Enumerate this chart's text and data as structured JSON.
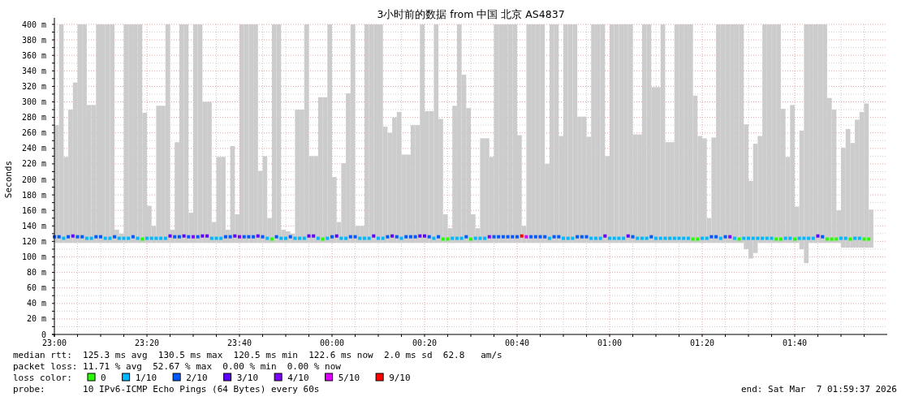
{
  "chart_data": {
    "type": "bar",
    "title": "3小时前的数据 from 中国 北京 AS4837",
    "ylabel": "Seconds",
    "legend_title": "loss color:",
    "legend": "bottom",
    "grid": true,
    "marker": "square",
    "xlim": [
      "2026-03-06T23:00",
      "2026-03-07T02:00"
    ],
    "xticks": [
      {
        "value": "2026-03-06T23:00",
        "label": "23:00"
      },
      {
        "value": "2026-03-06T23:05",
        "label": null
      },
      {
        "value": "2026-03-06T23:10",
        "label": null
      },
      {
        "value": "2026-03-06T23:15",
        "label": null
      },
      {
        "value": "2026-03-06T23:20",
        "label": "23:20"
      },
      {
        "value": "2026-03-06T23:25",
        "label": null
      },
      {
        "value": "2026-03-06T23:30",
        "label": null
      },
      {
        "value": "2026-03-06T23:35",
        "label": null
      },
      {
        "value": "2026-03-06T23:40",
        "label": "23:40"
      },
      {
        "value": "2026-03-06T23:45",
        "label": null
      },
      {
        "value": "2026-03-06T23:50",
        "label": null
      },
      {
        "value": "2026-03-06T23:55",
        "label": null
      },
      {
        "value": "2026-03-07T00:00",
        "label": "00:00"
      },
      {
        "value": "2026-03-07T00:05",
        "label": null
      },
      {
        "value": "2026-03-07T00:10",
        "label": null
      },
      {
        "value": "2026-03-07T00:15",
        "label": null
      },
      {
        "value": "2026-03-07T00:20",
        "label": "00:20"
      },
      {
        "value": "2026-03-07T00:25",
        "label": null
      },
      {
        "value": "2026-03-07T00:30",
        "label": null
      },
      {
        "value": "2026-03-07T00:35",
        "label": null
      },
      {
        "value": "2026-03-07T00:40",
        "label": "00:40"
      },
      {
        "value": "2026-03-07T00:45",
        "label": null
      },
      {
        "value": "2026-03-07T00:50",
        "label": null
      },
      {
        "value": "2026-03-07T00:55",
        "label": null
      },
      {
        "value": "2026-03-07T01:00",
        "label": "01:00"
      },
      {
        "value": "2026-03-07T01:05",
        "label": null
      },
      {
        "value": "2026-03-07T01:10",
        "label": null
      },
      {
        "value": "2026-03-07T01:15",
        "label": null
      },
      {
        "value": "2026-03-07T01:20",
        "label": "01:20"
      },
      {
        "value": "2026-03-07T01:25",
        "label": null
      },
      {
        "value": "2026-03-07T01:30",
        "label": null
      },
      {
        "value": "2026-03-07T01:35",
        "label": null
      },
      {
        "value": "2026-03-07T01:40",
        "label": "01:40"
      },
      {
        "value": "2026-03-07T01:45",
        "label": null
      },
      {
        "value": "2026-03-07T01:50",
        "label": null
      },
      {
        "value": "2026-03-07T01:55",
        "label": null
      }
    ],
    "ylim": [
      0,
      400
    ],
    "yticks": [
      {
        "value": 0,
        "label": "0"
      },
      {
        "value": 10,
        "label": null
      },
      {
        "value": 20,
        "label": "20 m"
      },
      {
        "value": 30,
        "label": null
      },
      {
        "value": 40,
        "label": "40 m"
      },
      {
        "value": 50,
        "label": null
      },
      {
        "value": 60,
        "label": "60 m"
      },
      {
        "value": 70,
        "label": null
      },
      {
        "value": 80,
        "label": "80 m"
      },
      {
        "value": 90,
        "label": null
      },
      {
        "value": 100,
        "label": "100 m"
      },
      {
        "value": 110,
        "label": null
      },
      {
        "value": 120,
        "label": "120 m"
      },
      {
        "value": 130,
        "label": null
      },
      {
        "value": 140,
        "label": "140 m"
      },
      {
        "value": 150,
        "label": null
      },
      {
        "value": 160,
        "label": "160 m"
      },
      {
        "value": 170,
        "label": null
      },
      {
        "value": 180,
        "label": "180 m"
      },
      {
        "value": 190,
        "label": null
      },
      {
        "value": 200,
        "label": "200 m"
      },
      {
        "value": 210,
        "label": null
      },
      {
        "value": 220,
        "label": "220 m"
      },
      {
        "value": 230,
        "label": null
      },
      {
        "value": 240,
        "label": "240 m"
      },
      {
        "value": 250,
        "label": null
      },
      {
        "value": 260,
        "label": "260 m"
      },
      {
        "value": 270,
        "label": null
      },
      {
        "value": 280,
        "label": "280 m"
      },
      {
        "value": 290,
        "label": null
      },
      {
        "value": 300,
        "label": "300 m"
      },
      {
        "value": 310,
        "label": null
      },
      {
        "value": 320,
        "label": "320 m"
      },
      {
        "value": 330,
        "label": null
      },
      {
        "value": 340,
        "label": "340 m"
      },
      {
        "value": 350,
        "label": null
      },
      {
        "value": 360,
        "label": "360 m"
      },
      {
        "value": 370,
        "label": null
      },
      {
        "value": 380,
        "label": "380 m"
      },
      {
        "value": 390,
        "label": null
      },
      {
        "value": 400,
        "label": "400 m"
      }
    ],
    "annotations": [
      "median rtt:  125.3 ms avg  130.5 ms max  120.5 ms min  122.6 ms now  2.0 ms sd  62.8   am/s",
      "packet loss: 11.71 % avg  52.67 % max  0.00 % min  0.00 % now",
      "probe:       10 IPv6-ICMP Echo Pings (64 Bytes) every 60s",
      "end: Sat Mar  7 01:59:37 2026"
    ],
    "series": [
      {
        "type": "bar",
        "color": "#cccccc",
        "x": [
          "2026-03-06T23:00",
          "2026-03-06T23:01",
          "2026-03-06T23:02",
          "2026-03-06T23:03",
          "2026-03-06T23:04",
          "2026-03-06T23:05",
          "2026-03-06T23:06",
          "2026-03-06T23:07",
          "2026-03-06T23:08",
          "2026-03-06T23:09",
          "2026-03-06T23:10",
          "2026-03-06T23:11",
          "2026-03-06T23:12",
          "2026-03-06T23:13",
          "2026-03-06T23:14",
          "2026-03-06T23:15",
          "2026-03-06T23:16",
          "2026-03-06T23:17",
          "2026-03-06T23:18",
          "2026-03-06T23:19",
          "2026-03-06T23:20",
          "2026-03-06T23:21",
          "2026-03-06T23:22",
          "2026-03-06T23:23",
          "2026-03-06T23:24",
          "2026-03-06T23:25",
          "2026-03-06T23:26",
          "2026-03-06T23:27",
          "2026-03-06T23:28",
          "2026-03-06T23:29",
          "2026-03-06T23:30",
          "2026-03-06T23:31",
          "2026-03-06T23:32",
          "2026-03-06T23:33",
          "2026-03-06T23:34",
          "2026-03-06T23:35",
          "2026-03-06T23:36",
          "2026-03-06T23:37",
          "2026-03-06T23:38",
          "2026-03-06T23:39",
          "2026-03-06T23:40",
          "2026-03-06T23:41",
          "2026-03-06T23:42",
          "2026-03-06T23:43",
          "2026-03-06T23:44",
          "2026-03-06T23:45",
          "2026-03-06T23:46",
          "2026-03-06T23:47",
          "2026-03-06T23:48",
          "2026-03-06T23:49",
          "2026-03-06T23:50",
          "2026-03-06T23:51",
          "2026-03-06T23:52",
          "2026-03-06T23:53",
          "2026-03-06T23:54",
          "2026-03-06T23:55",
          "2026-03-06T23:56",
          "2026-03-06T23:57",
          "2026-03-06T23:58",
          "2026-03-06T23:59",
          "2026-03-07T00:00",
          "2026-03-07T00:01",
          "2026-03-07T00:02",
          "2026-03-07T00:03",
          "2026-03-07T00:04",
          "2026-03-07T00:05",
          "2026-03-07T00:06",
          "2026-03-07T00:07",
          "2026-03-07T00:08",
          "2026-03-07T00:09",
          "2026-03-07T00:10",
          "2026-03-07T00:11",
          "2026-03-07T00:12",
          "2026-03-07T00:13",
          "2026-03-07T00:14",
          "2026-03-07T00:15",
          "2026-03-07T00:16",
          "2026-03-07T00:17",
          "2026-03-07T00:18",
          "2026-03-07T00:19",
          "2026-03-07T00:20",
          "2026-03-07T00:21",
          "2026-03-07T00:22",
          "2026-03-07T00:23",
          "2026-03-07T00:24",
          "2026-03-07T00:25",
          "2026-03-07T00:26",
          "2026-03-07T00:27",
          "2026-03-07T00:28",
          "2026-03-07T00:29",
          "2026-03-07T00:30",
          "2026-03-07T00:31",
          "2026-03-07T00:32",
          "2026-03-07T00:33",
          "2026-03-07T00:34",
          "2026-03-07T00:35",
          "2026-03-07T00:36",
          "2026-03-07T00:37",
          "2026-03-07T00:38",
          "2026-03-07T00:39",
          "2026-03-07T00:40",
          "2026-03-07T00:41",
          "2026-03-07T00:42",
          "2026-03-07T00:43",
          "2026-03-07T00:44",
          "2026-03-07T00:45",
          "2026-03-07T00:46",
          "2026-03-07T00:47",
          "2026-03-07T00:48",
          "2026-03-07T00:49",
          "2026-03-07T00:50",
          "2026-03-07T00:51",
          "2026-03-07T00:52",
          "2026-03-07T00:53",
          "2026-03-07T00:54",
          "2026-03-07T00:55",
          "2026-03-07T00:56",
          "2026-03-07T00:57",
          "2026-03-07T00:58",
          "2026-03-07T00:59",
          "2026-03-07T01:00",
          "2026-03-07T01:01",
          "2026-03-07T01:02",
          "2026-03-07T01:03",
          "2026-03-07T01:04",
          "2026-03-07T01:05",
          "2026-03-07T01:06",
          "2026-03-07T01:07",
          "2026-03-07T01:08",
          "2026-03-07T01:09",
          "2026-03-07T01:10",
          "2026-03-07T01:11",
          "2026-03-07T01:12",
          "2026-03-07T01:13",
          "2026-03-07T01:14",
          "2026-03-07T01:15",
          "2026-03-07T01:16",
          "2026-03-07T01:17",
          "2026-03-07T01:18",
          "2026-03-07T01:19",
          "2026-03-07T01:20",
          "2026-03-07T01:21",
          "2026-03-07T01:22",
          "2026-03-07T01:23",
          "2026-03-07T01:24",
          "2026-03-07T01:25",
          "2026-03-07T01:26",
          "2026-03-07T01:27",
          "2026-03-07T01:28",
          "2026-03-07T01:29",
          "2026-03-07T01:30",
          "2026-03-07T01:31",
          "2026-03-07T01:32",
          "2026-03-07T01:33",
          "2026-03-07T01:34",
          "2026-03-07T01:35",
          "2026-03-07T01:36",
          "2026-03-07T01:37",
          "2026-03-07T01:38",
          "2026-03-07T01:39",
          "2026-03-07T01:40",
          "2026-03-07T01:41",
          "2026-03-07T01:42",
          "2026-03-07T01:43",
          "2026-03-07T01:44",
          "2026-03-07T01:45",
          "2026-03-07T01:46",
          "2026-03-07T01:47",
          "2026-03-07T01:48",
          "2026-03-07T01:49",
          "2026-03-07T01:50",
          "2026-03-07T01:51",
          "2026-03-07T01:52",
          "2026-03-07T01:53",
          "2026-03-07T01:54",
          "2026-03-07T01:55",
          "2026-03-07T01:56"
        ],
        "base": [
          118,
          118,
          118,
          118,
          118,
          118,
          118,
          118,
          118,
          118,
          118,
          118,
          118,
          118,
          118,
          118,
          118,
          118,
          118,
          118,
          118,
          118,
          118,
          118,
          118,
          118,
          118,
          118,
          118,
          118,
          118,
          118,
          118,
          118,
          118,
          118,
          118,
          118,
          118,
          118,
          118,
          118,
          118,
          118,
          118,
          118,
          118,
          118,
          118,
          118,
          118,
          118,
          118,
          118,
          118,
          118,
          118,
          118,
          118,
          118,
          118,
          118,
          118,
          118,
          118,
          118,
          118,
          118,
          118,
          118,
          118,
          118,
          118,
          118,
          118,
          118,
          118,
          118,
          118,
          118,
          118,
          118,
          118,
          118,
          118,
          118,
          118,
          118,
          118,
          118,
          118,
          118,
          118,
          118,
          118,
          118,
          118,
          118,
          118,
          118,
          118,
          118,
          118,
          118,
          118,
          118,
          118,
          118,
          118,
          118,
          118,
          118,
          118,
          118,
          118,
          118,
          118,
          118,
          118,
          118,
          118,
          118,
          118,
          118,
          118,
          118,
          118,
          118,
          118,
          118,
          118,
          118,
          118,
          118,
          118,
          118,
          118,
          118,
          118,
          118,
          118,
          118,
          118,
          118,
          118,
          118,
          118,
          118,
          118,
          110,
          98,
          105,
          118,
          118,
          118,
          118,
          118,
          118,
          118,
          118,
          118,
          110,
          92,
          118,
          118,
          118,
          118,
          118,
          118,
          118,
          112,
          112,
          112,
          112,
          112,
          112,
          112
        ],
        "values": [
          152,
          282,
          111,
          172,
          207,
          282,
          282,
          178,
          178,
          282,
          282,
          282,
          282,
          17,
          12,
          282,
          282,
          282,
          282,
          168,
          48,
          22,
          177,
          177,
          282,
          17,
          130,
          282,
          282,
          39,
          282,
          282,
          182,
          182,
          27,
          111,
          111,
          17,
          125,
          37,
          282,
          282,
          282,
          282,
          93,
          112,
          32,
          282,
          282,
          17,
          15,
          12,
          172,
          172,
          282,
          112,
          112,
          188,
          188,
          282,
          85,
          27,
          103,
          193,
          282,
          22,
          22,
          282,
          282,
          282,
          282,
          150,
          142,
          162,
          169,
          114,
          114,
          152,
          152,
          282,
          170,
          170,
          282,
          160,
          37,
          19,
          177,
          282,
          217,
          174,
          37,
          19,
          135,
          135,
          111,
          282,
          282,
          282,
          282,
          282,
          139,
          22,
          282,
          282,
          282,
          282,
          102,
          282,
          282,
          138,
          282,
          282,
          282,
          163,
          163,
          137,
          282,
          282,
          282,
          112,
          282,
          282,
          282,
          282,
          282,
          140,
          140,
          282,
          282,
          201,
          201,
          282,
          130,
          130,
          282,
          282,
          282,
          282,
          190,
          138,
          135,
          32,
          136,
          282,
          282,
          282,
          282,
          282,
          282,
          161,
          100,
          141,
          138,
          282,
          282,
          282,
          282,
          173,
          111,
          178,
          47,
          153,
          308,
          282,
          282,
          282,
          282,
          187,
          172,
          42,
          129,
          153,
          135,
          165,
          175,
          186,
          49
        ]
      },
      {
        "type": "scatter",
        "name": "0",
        "color": "#26ff00",
        "x": [
          "2026-03-06T23:19",
          "2026-03-06T23:47",
          "2026-03-06T23:58",
          "2026-03-07T00:24",
          "2026-03-07T00:25",
          "2026-03-07T00:30",
          "2026-03-07T01:18",
          "2026-03-07T01:19",
          "2026-03-07T01:28",
          "2026-03-07T01:36",
          "2026-03-07T01:37",
          "2026-03-07T01:40",
          "2026-03-07T01:47",
          "2026-03-07T01:48",
          "2026-03-07T01:49",
          "2026-03-07T01:52",
          "2026-03-07T01:55",
          "2026-03-07T01:56"
        ],
        "values": [
          123,
          123,
          123,
          123,
          123,
          123,
          123,
          123,
          123,
          123,
          123,
          123,
          123,
          123,
          123,
          123,
          123,
          123
        ]
      },
      {
        "type": "scatter",
        "name": "1/10",
        "color": "#00b8ff",
        "x": [
          "2026-03-06T23:02",
          "2026-03-06T23:07",
          "2026-03-06T23:08",
          "2026-03-06T23:11",
          "2026-03-06T23:12",
          "2026-03-06T23:14",
          "2026-03-06T23:15",
          "2026-03-06T23:16",
          "2026-03-06T23:18",
          "2026-03-06T23:20",
          "2026-03-06T23:21",
          "2026-03-06T23:22",
          "2026-03-06T23:23",
          "2026-03-06T23:24",
          "2026-03-06T23:34",
          "2026-03-06T23:35",
          "2026-03-06T23:36",
          "2026-03-06T23:46",
          "2026-03-06T23:49",
          "2026-03-06T23:50",
          "2026-03-06T23:52",
          "2026-03-06T23:53",
          "2026-03-06T23:54",
          "2026-03-06T23:57",
          "2026-03-06T23:59",
          "2026-03-07T00:02",
          "2026-03-07T00:03",
          "2026-03-07T00:06",
          "2026-03-07T00:07",
          "2026-03-07T00:08",
          "2026-03-07T00:10",
          "2026-03-07T00:11",
          "2026-03-07T00:15",
          "2026-03-07T00:22",
          "2026-03-07T00:26",
          "2026-03-07T00:27",
          "2026-03-07T00:28",
          "2026-03-07T00:31",
          "2026-03-07T00:32",
          "2026-03-07T00:33",
          "2026-03-07T00:47",
          "2026-03-07T00:50",
          "2026-03-07T00:51",
          "2026-03-07T00:52",
          "2026-03-07T00:56",
          "2026-03-07T00:57",
          "2026-03-07T00:58",
          "2026-03-07T01:00",
          "2026-03-07T01:01",
          "2026-03-07T01:02",
          "2026-03-07T01:03",
          "2026-03-07T01:06",
          "2026-03-07T01:07",
          "2026-03-07T01:08",
          "2026-03-07T01:10",
          "2026-03-07T01:11",
          "2026-03-07T01:12",
          "2026-03-07T01:13",
          "2026-03-07T01:14",
          "2026-03-07T01:15",
          "2026-03-07T01:16",
          "2026-03-07T01:17",
          "2026-03-07T01:20",
          "2026-03-07T01:21",
          "2026-03-07T01:24",
          "2026-03-07T01:27",
          "2026-03-07T01:29",
          "2026-03-07T01:30",
          "2026-03-07T01:31",
          "2026-03-07T01:32",
          "2026-03-07T01:33",
          "2026-03-07T01:34",
          "2026-03-07T01:35",
          "2026-03-07T01:38",
          "2026-03-07T01:39",
          "2026-03-07T01:41",
          "2026-03-07T01:42",
          "2026-03-07T01:43",
          "2026-03-07T01:44",
          "2026-03-07T01:50",
          "2026-03-07T01:51",
          "2026-03-07T01:53",
          "2026-03-07T01:54"
        ],
        "values": [
          124,
          124,
          124,
          124,
          124,
          124,
          124,
          124,
          124,
          124,
          124,
          124,
          124,
          124,
          124,
          124,
          124,
          124,
          124,
          124,
          124,
          124,
          124,
          124,
          124,
          124,
          124,
          124,
          124,
          124,
          124,
          124,
          124,
          124,
          124,
          124,
          124,
          124,
          124,
          124,
          124,
          124,
          124,
          124,
          124,
          124,
          124,
          124,
          124,
          124,
          124,
          124,
          124,
          124,
          124,
          124,
          124,
          124,
          124,
          124,
          124,
          124,
          124,
          124,
          124,
          124,
          124,
          124,
          124,
          124,
          124,
          124,
          124,
          124,
          124,
          124,
          124,
          124,
          124,
          124,
          124,
          124,
          124
        ]
      },
      {
        "type": "scatter",
        "name": "2/10",
        "color": "#0059ff",
        "x": [
          "2026-03-06T23:00",
          "2026-03-06T23:01",
          "2026-03-06T23:03",
          "2026-03-06T23:05",
          "2026-03-06T23:06",
          "2026-03-06T23:09",
          "2026-03-06T23:10",
          "2026-03-06T23:13",
          "2026-03-06T23:17",
          "2026-03-06T23:26",
          "2026-03-06T23:27",
          "2026-03-06T23:29",
          "2026-03-06T23:31",
          "2026-03-06T23:37",
          "2026-03-06T23:38",
          "2026-03-06T23:41",
          "2026-03-06T23:42",
          "2026-03-06T23:43",
          "2026-03-06T23:45",
          "2026-03-06T23:48",
          "2026-03-06T23:51",
          "2026-03-07T00:00",
          "2026-03-07T00:04",
          "2026-03-07T00:05",
          "2026-03-07T00:12",
          "2026-03-07T00:14",
          "2026-03-07T00:16",
          "2026-03-07T00:17",
          "2026-03-07T00:18",
          "2026-03-07T00:21",
          "2026-03-07T00:23",
          "2026-03-07T00:29",
          "2026-03-07T00:35",
          "2026-03-07T00:36",
          "2026-03-07T00:37",
          "2026-03-07T00:38",
          "2026-03-07T00:39",
          "2026-03-07T00:40",
          "2026-03-07T00:43",
          "2026-03-07T00:44",
          "2026-03-07T00:45",
          "2026-03-07T00:46",
          "2026-03-07T00:48",
          "2026-03-07T00:49",
          "2026-03-07T00:53",
          "2026-03-07T00:54",
          "2026-03-07T00:55",
          "2026-03-07T01:05",
          "2026-03-07T01:09",
          "2026-03-07T01:22",
          "2026-03-07T01:23",
          "2026-03-07T01:25",
          "2026-03-07T01:46"
        ],
        "values": [
          126,
          126,
          126,
          126,
          126,
          126,
          126,
          126,
          126,
          126,
          126,
          126,
          126,
          126,
          126,
          126,
          126,
          126,
          126,
          126,
          126,
          126,
          126,
          126,
          126,
          126,
          126,
          126,
          126,
          126,
          126,
          126,
          126,
          126,
          126,
          126,
          126,
          126,
          126,
          126,
          126,
          126,
          126,
          126,
          126,
          126,
          126,
          126,
          126,
          126,
          126,
          126,
          126
        ]
      },
      {
        "type": "scatter",
        "name": "3/10",
        "color": "#5e00ff",
        "x": [
          "2026-03-06T23:04",
          "2026-03-06T23:25",
          "2026-03-06T23:28",
          "2026-03-06T23:32",
          "2026-03-06T23:33",
          "2026-03-06T23:39",
          "2026-03-06T23:44",
          "2026-03-06T23:55",
          "2026-03-06T23:56",
          "2026-03-07T00:01",
          "2026-03-07T00:09",
          "2026-03-07T00:13",
          "2026-03-07T00:19",
          "2026-03-07T00:20",
          "2026-03-07T00:59",
          "2026-03-07T01:04",
          "2026-03-07T01:45"
        ],
        "values": [
          127,
          127,
          127,
          127,
          127,
          127,
          127,
          127,
          127,
          127,
          127,
          127,
          127,
          127,
          127,
          127,
          127
        ]
      },
      {
        "type": "scatter",
        "name": "4/10",
        "color": "#7e00ff",
        "x": [
          "2026-03-06T23:30",
          "2026-03-06T23:40",
          "2026-03-07T00:34",
          "2026-03-07T01:26"
        ],
        "values": [
          126,
          126,
          126,
          126
        ]
      },
      {
        "type": "scatter",
        "name": "5/10",
        "color": "#dd00ff",
        "x": [
          "2026-03-07T00:42"
        ],
        "values": [
          126
        ]
      },
      {
        "type": "scatter",
        "name": "9/10",
        "color": "#ff0000",
        "x": [
          "2026-03-07T00:41"
        ],
        "values": [
          127
        ]
      }
    ]
  }
}
